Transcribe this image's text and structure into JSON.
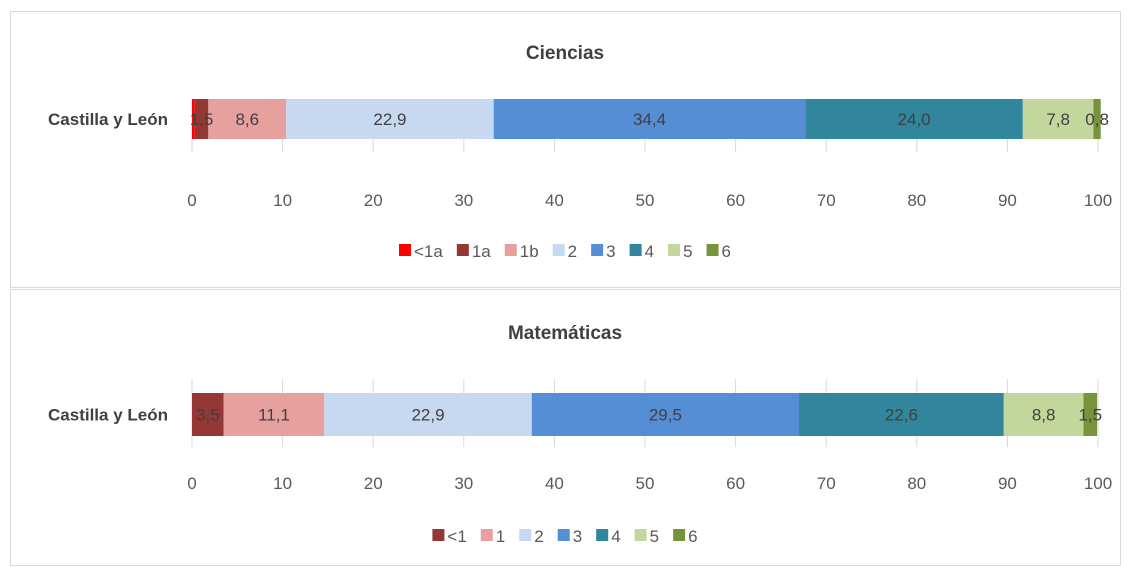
{
  "chart_data": [
    {
      "type": "bar",
      "orientation": "horizontal",
      "stacked": true,
      "title": "Ciencias",
      "categories": [
        "Castilla y León"
      ],
      "xlim": [
        0,
        100
      ],
      "xticks": [
        "0",
        "10",
        "20",
        "30",
        "40",
        "50",
        "60",
        "70",
        "80",
        "90",
        "100"
      ],
      "grid": true,
      "legend_position": "bottom",
      "series": [
        {
          "name": "<1a",
          "values": [
            0.3
          ],
          "label": "",
          "color": "#ff0000"
        },
        {
          "name": "1a",
          "values": [
            1.5
          ],
          "label": "1,5",
          "color": "#953735"
        },
        {
          "name": "1b",
          "values": [
            8.6
          ],
          "label": "8,6",
          "color": "#e6a09e"
        },
        {
          "name": "2",
          "values": [
            22.9
          ],
          "label": "22,9",
          "color": "#c6d9f1"
        },
        {
          "name": "3",
          "values": [
            34.4
          ],
          "label": "34,4",
          "color": "#558ed5"
        },
        {
          "name": "4",
          "values": [
            24.0
          ],
          "label": "24,0",
          "color": "#31859c"
        },
        {
          "name": "5",
          "values": [
            7.8
          ],
          "label": "7,8",
          "color": "#c3d69b"
        },
        {
          "name": "6",
          "values": [
            0.8
          ],
          "label": "0,8",
          "color": "#77933c"
        }
      ]
    },
    {
      "type": "bar",
      "orientation": "horizontal",
      "stacked": true,
      "title": "Matemáticas",
      "categories": [
        "Castilla y León"
      ],
      "xlim": [
        0,
        100
      ],
      "xticks": [
        "0",
        "10",
        "20",
        "30",
        "40",
        "50",
        "60",
        "70",
        "80",
        "90",
        "100"
      ],
      "grid": true,
      "legend_position": "bottom",
      "series": [
        {
          "name": "<1",
          "values": [
            3.5
          ],
          "label": "3,5",
          "color": "#953735"
        },
        {
          "name": "1",
          "values": [
            11.1
          ],
          "label": "11,1",
          "color": "#e6a09e"
        },
        {
          "name": "2",
          "values": [
            22.9
          ],
          "label": "22,9",
          "color": "#c6d9f1"
        },
        {
          "name": "3",
          "values": [
            29.5
          ],
          "label": "29,5",
          "color": "#558ed5"
        },
        {
          "name": "4",
          "values": [
            22.6
          ],
          "label": "22,6",
          "color": "#31859c"
        },
        {
          "name": "5",
          "values": [
            8.8
          ],
          "label": "8,8",
          "color": "#c3d69b"
        },
        {
          "name": "6",
          "values": [
            1.5
          ],
          "label": "1,5",
          "color": "#77933c"
        }
      ]
    }
  ]
}
